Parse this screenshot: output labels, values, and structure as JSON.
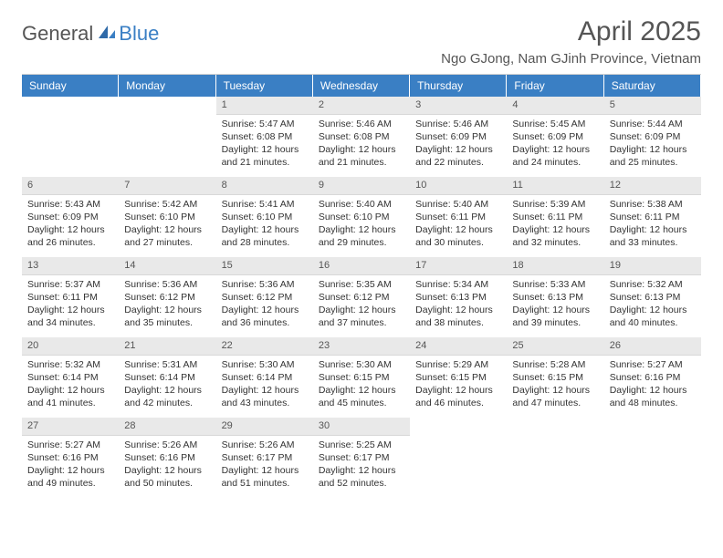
{
  "logo": {
    "general": "General",
    "blue": "Blue"
  },
  "title": "April 2025",
  "location": "Ngo GJong, Nam GJinh Province, Vietnam",
  "colors": {
    "header_bg": "#3a7fc4",
    "header_text": "#ffffff",
    "daynum_bg": "#e9e9e9",
    "text": "#333333",
    "title_text": "#555555"
  },
  "day_names": [
    "Sunday",
    "Monday",
    "Tuesday",
    "Wednesday",
    "Thursday",
    "Friday",
    "Saturday"
  ],
  "weeks": [
    [
      {
        "n": "",
        "sunrise": "",
        "sunset": "",
        "daylight": ""
      },
      {
        "n": "",
        "sunrise": "",
        "sunset": "",
        "daylight": ""
      },
      {
        "n": "1",
        "sunrise": "Sunrise: 5:47 AM",
        "sunset": "Sunset: 6:08 PM",
        "daylight": "Daylight: 12 hours and 21 minutes."
      },
      {
        "n": "2",
        "sunrise": "Sunrise: 5:46 AM",
        "sunset": "Sunset: 6:08 PM",
        "daylight": "Daylight: 12 hours and 21 minutes."
      },
      {
        "n": "3",
        "sunrise": "Sunrise: 5:46 AM",
        "sunset": "Sunset: 6:09 PM",
        "daylight": "Daylight: 12 hours and 22 minutes."
      },
      {
        "n": "4",
        "sunrise": "Sunrise: 5:45 AM",
        "sunset": "Sunset: 6:09 PM",
        "daylight": "Daylight: 12 hours and 24 minutes."
      },
      {
        "n": "5",
        "sunrise": "Sunrise: 5:44 AM",
        "sunset": "Sunset: 6:09 PM",
        "daylight": "Daylight: 12 hours and 25 minutes."
      }
    ],
    [
      {
        "n": "6",
        "sunrise": "Sunrise: 5:43 AM",
        "sunset": "Sunset: 6:09 PM",
        "daylight": "Daylight: 12 hours and 26 minutes."
      },
      {
        "n": "7",
        "sunrise": "Sunrise: 5:42 AM",
        "sunset": "Sunset: 6:10 PM",
        "daylight": "Daylight: 12 hours and 27 minutes."
      },
      {
        "n": "8",
        "sunrise": "Sunrise: 5:41 AM",
        "sunset": "Sunset: 6:10 PM",
        "daylight": "Daylight: 12 hours and 28 minutes."
      },
      {
        "n": "9",
        "sunrise": "Sunrise: 5:40 AM",
        "sunset": "Sunset: 6:10 PM",
        "daylight": "Daylight: 12 hours and 29 minutes."
      },
      {
        "n": "10",
        "sunrise": "Sunrise: 5:40 AM",
        "sunset": "Sunset: 6:11 PM",
        "daylight": "Daylight: 12 hours and 30 minutes."
      },
      {
        "n": "11",
        "sunrise": "Sunrise: 5:39 AM",
        "sunset": "Sunset: 6:11 PM",
        "daylight": "Daylight: 12 hours and 32 minutes."
      },
      {
        "n": "12",
        "sunrise": "Sunrise: 5:38 AM",
        "sunset": "Sunset: 6:11 PM",
        "daylight": "Daylight: 12 hours and 33 minutes."
      }
    ],
    [
      {
        "n": "13",
        "sunrise": "Sunrise: 5:37 AM",
        "sunset": "Sunset: 6:11 PM",
        "daylight": "Daylight: 12 hours and 34 minutes."
      },
      {
        "n": "14",
        "sunrise": "Sunrise: 5:36 AM",
        "sunset": "Sunset: 6:12 PM",
        "daylight": "Daylight: 12 hours and 35 minutes."
      },
      {
        "n": "15",
        "sunrise": "Sunrise: 5:36 AM",
        "sunset": "Sunset: 6:12 PM",
        "daylight": "Daylight: 12 hours and 36 minutes."
      },
      {
        "n": "16",
        "sunrise": "Sunrise: 5:35 AM",
        "sunset": "Sunset: 6:12 PM",
        "daylight": "Daylight: 12 hours and 37 minutes."
      },
      {
        "n": "17",
        "sunrise": "Sunrise: 5:34 AM",
        "sunset": "Sunset: 6:13 PM",
        "daylight": "Daylight: 12 hours and 38 minutes."
      },
      {
        "n": "18",
        "sunrise": "Sunrise: 5:33 AM",
        "sunset": "Sunset: 6:13 PM",
        "daylight": "Daylight: 12 hours and 39 minutes."
      },
      {
        "n": "19",
        "sunrise": "Sunrise: 5:32 AM",
        "sunset": "Sunset: 6:13 PM",
        "daylight": "Daylight: 12 hours and 40 minutes."
      }
    ],
    [
      {
        "n": "20",
        "sunrise": "Sunrise: 5:32 AM",
        "sunset": "Sunset: 6:14 PM",
        "daylight": "Daylight: 12 hours and 41 minutes."
      },
      {
        "n": "21",
        "sunrise": "Sunrise: 5:31 AM",
        "sunset": "Sunset: 6:14 PM",
        "daylight": "Daylight: 12 hours and 42 minutes."
      },
      {
        "n": "22",
        "sunrise": "Sunrise: 5:30 AM",
        "sunset": "Sunset: 6:14 PM",
        "daylight": "Daylight: 12 hours and 43 minutes."
      },
      {
        "n": "23",
        "sunrise": "Sunrise: 5:30 AM",
        "sunset": "Sunset: 6:15 PM",
        "daylight": "Daylight: 12 hours and 45 minutes."
      },
      {
        "n": "24",
        "sunrise": "Sunrise: 5:29 AM",
        "sunset": "Sunset: 6:15 PM",
        "daylight": "Daylight: 12 hours and 46 minutes."
      },
      {
        "n": "25",
        "sunrise": "Sunrise: 5:28 AM",
        "sunset": "Sunset: 6:15 PM",
        "daylight": "Daylight: 12 hours and 47 minutes."
      },
      {
        "n": "26",
        "sunrise": "Sunrise: 5:27 AM",
        "sunset": "Sunset: 6:16 PM",
        "daylight": "Daylight: 12 hours and 48 minutes."
      }
    ],
    [
      {
        "n": "27",
        "sunrise": "Sunrise: 5:27 AM",
        "sunset": "Sunset: 6:16 PM",
        "daylight": "Daylight: 12 hours and 49 minutes."
      },
      {
        "n": "28",
        "sunrise": "Sunrise: 5:26 AM",
        "sunset": "Sunset: 6:16 PM",
        "daylight": "Daylight: 12 hours and 50 minutes."
      },
      {
        "n": "29",
        "sunrise": "Sunrise: 5:26 AM",
        "sunset": "Sunset: 6:17 PM",
        "daylight": "Daylight: 12 hours and 51 minutes."
      },
      {
        "n": "30",
        "sunrise": "Sunrise: 5:25 AM",
        "sunset": "Sunset: 6:17 PM",
        "daylight": "Daylight: 12 hours and 52 minutes."
      },
      {
        "n": "",
        "sunrise": "",
        "sunset": "",
        "daylight": ""
      },
      {
        "n": "",
        "sunrise": "",
        "sunset": "",
        "daylight": ""
      },
      {
        "n": "",
        "sunrise": "",
        "sunset": "",
        "daylight": ""
      }
    ]
  ]
}
